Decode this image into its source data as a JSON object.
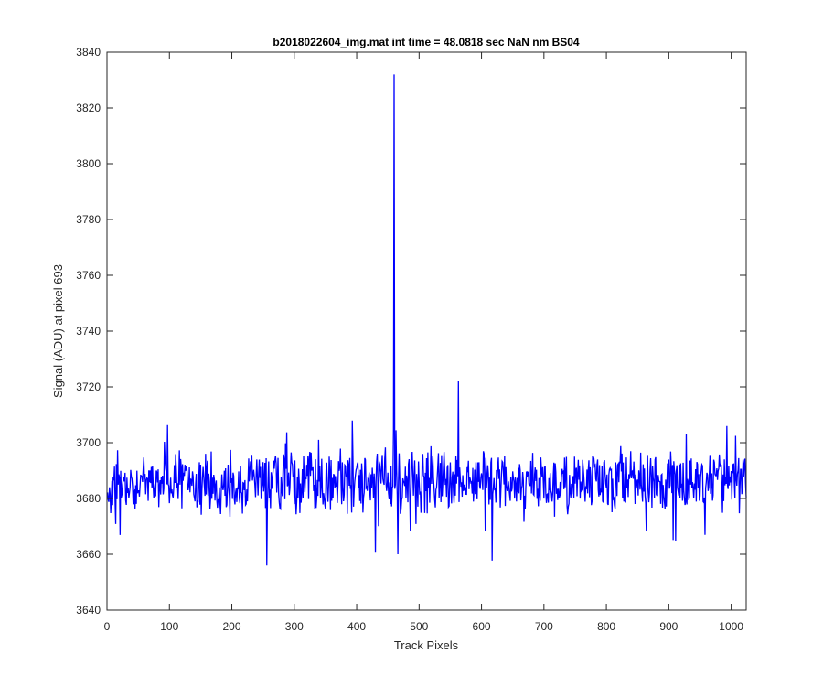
{
  "chart_data": {
    "type": "line",
    "title": "b2018022604_img.mat int time = 48.0818 sec  NaN nm BS04",
    "xlabel": "Track Pixels",
    "ylabel": "Signal (ADU) at pixel 693",
    "xlim": [
      0,
      1024
    ],
    "ylim": [
      3640,
      3840
    ],
    "xticks": [
      "0",
      "100",
      "200",
      "300",
      "400",
      "500",
      "600",
      "700",
      "800",
      "900",
      "1000"
    ],
    "yticks": [
      "3640",
      "3660",
      "3680",
      "3700",
      "3720",
      "3740",
      "3760",
      "3780",
      "3800",
      "3820",
      "3840"
    ],
    "grid": false,
    "line_color": "#0000ff",
    "series": [
      {
        "x": [
          1,
          459,
          460,
          461
        ],
        "values": [
          3684,
          3705,
          3832,
          3690
        ],
        "note_points": []
      }
    ],
    "noise": {
      "baseline": 3686,
      "baseline_center": 3690,
      "spread": 8,
      "local_min": 3656,
      "local_max": 3722,
      "samples": 1024
    },
    "features": {
      "peak": {
        "x": 460,
        "y": 3832
      },
      "dip_after_peak": {
        "x": 466,
        "y": 3660
      },
      "secondary_high": {
        "x": 563,
        "y": 3722
      },
      "lowest": {
        "x": 256,
        "y": 3656
      }
    }
  }
}
